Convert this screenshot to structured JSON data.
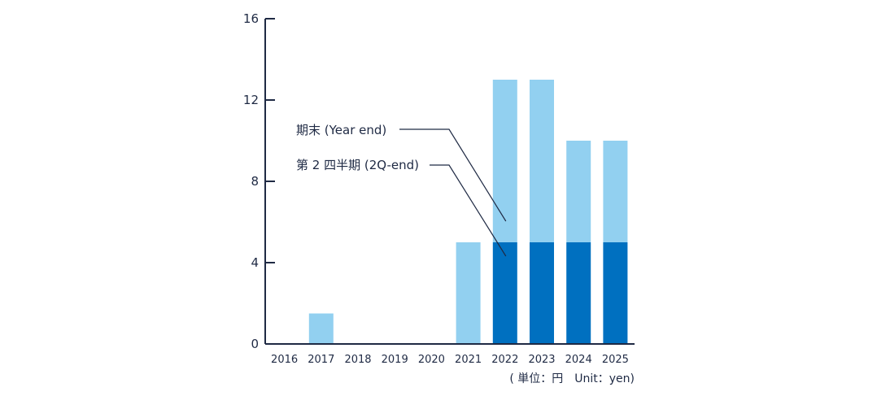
{
  "chart_data": {
    "type": "bar",
    "stacked": true,
    "categories": [
      "2016",
      "2017",
      "2018",
      "2019",
      "2020",
      "2021",
      "2022",
      "2023",
      "2024",
      "2025"
    ],
    "series": [
      {
        "name": "第 2 四半期 (2Q-end)",
        "color": "#0070c0",
        "values": [
          0,
          0,
          0,
          0,
          0,
          0,
          5,
          5,
          5,
          5
        ]
      },
      {
        "name": "期末 (Year end)",
        "color": "#92d0f0",
        "values": [
          0,
          1.5,
          0,
          0,
          0,
          5,
          8,
          8,
          5,
          5
        ]
      }
    ],
    "yticks": [
      0,
      4,
      8,
      12,
      16
    ],
    "ylim": [
      0,
      16
    ],
    "grid": false,
    "unit_note": "( 単位：円　Unit：yen)"
  }
}
